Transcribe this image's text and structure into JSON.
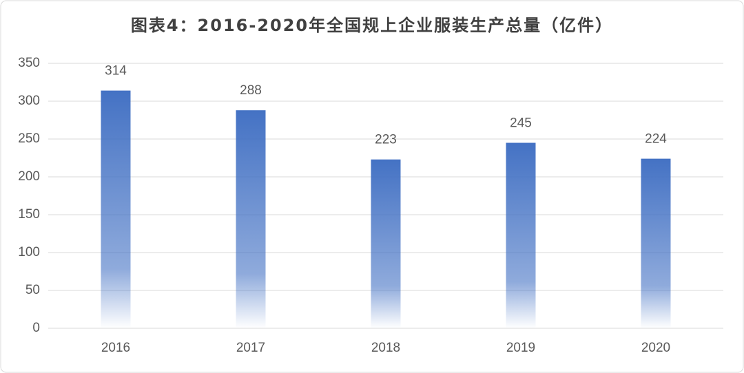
{
  "chart_data": {
    "type": "bar",
    "title": "图表4：2016-2020年全国规上企业服装生产总量（亿件）",
    "categories": [
      "2016",
      "2017",
      "2018",
      "2019",
      "2020"
    ],
    "values": [
      314,
      288,
      223,
      245,
      224
    ],
    "color": "#4472c4",
    "ylim": [
      0,
      350
    ],
    "yticks": [
      0,
      50,
      100,
      150,
      200,
      250,
      300,
      350
    ],
    "grid": true
  }
}
